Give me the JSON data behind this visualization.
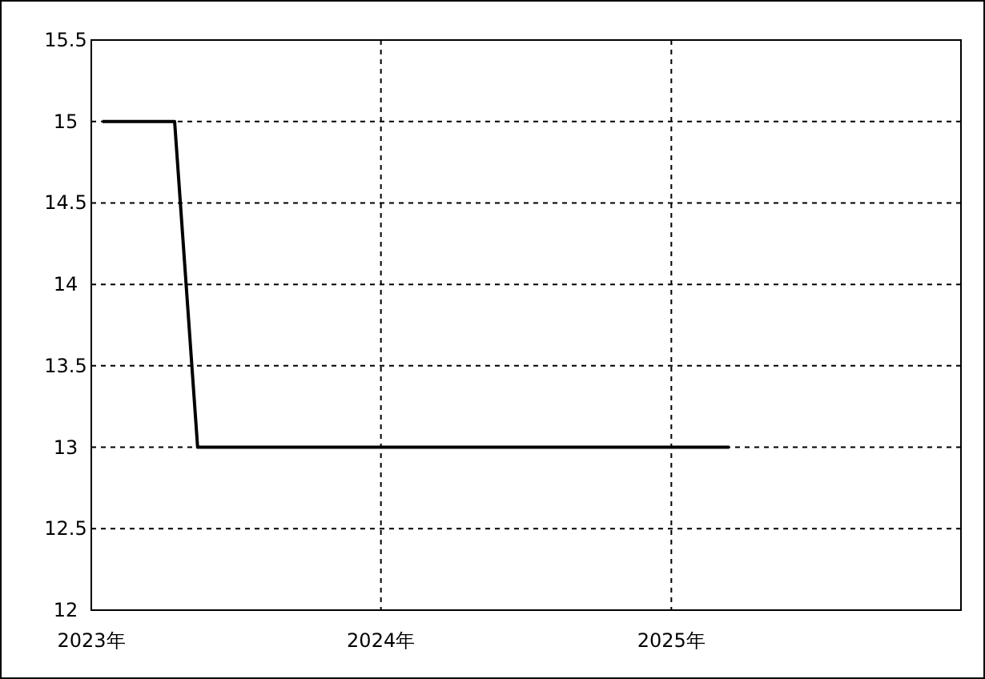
{
  "chart_data": {
    "type": "line",
    "x": [
      "2023-01-15",
      "2023-04-16",
      "2023-05-15",
      "2025-03-15"
    ],
    "series": [
      {
        "color": "#000000",
        "values": [
          15,
          15,
          13,
          13
        ]
      }
    ],
    "xlim": [
      "2023-01-01",
      "2026-01-01"
    ],
    "xticks": [
      {
        "value": "2023-01-01",
        "label": "2023年"
      },
      {
        "value": "2024-01-01",
        "label": "2024年"
      },
      {
        "value": "2025-01-01",
        "label": "2025年"
      }
    ],
    "ylim": [
      12,
      15.5
    ],
    "yticks": [
      12,
      12.5,
      13,
      13.5,
      14,
      14.5,
      15,
      15.5
    ],
    "grid": true,
    "marker": "none",
    "line_style": "solid"
  }
}
